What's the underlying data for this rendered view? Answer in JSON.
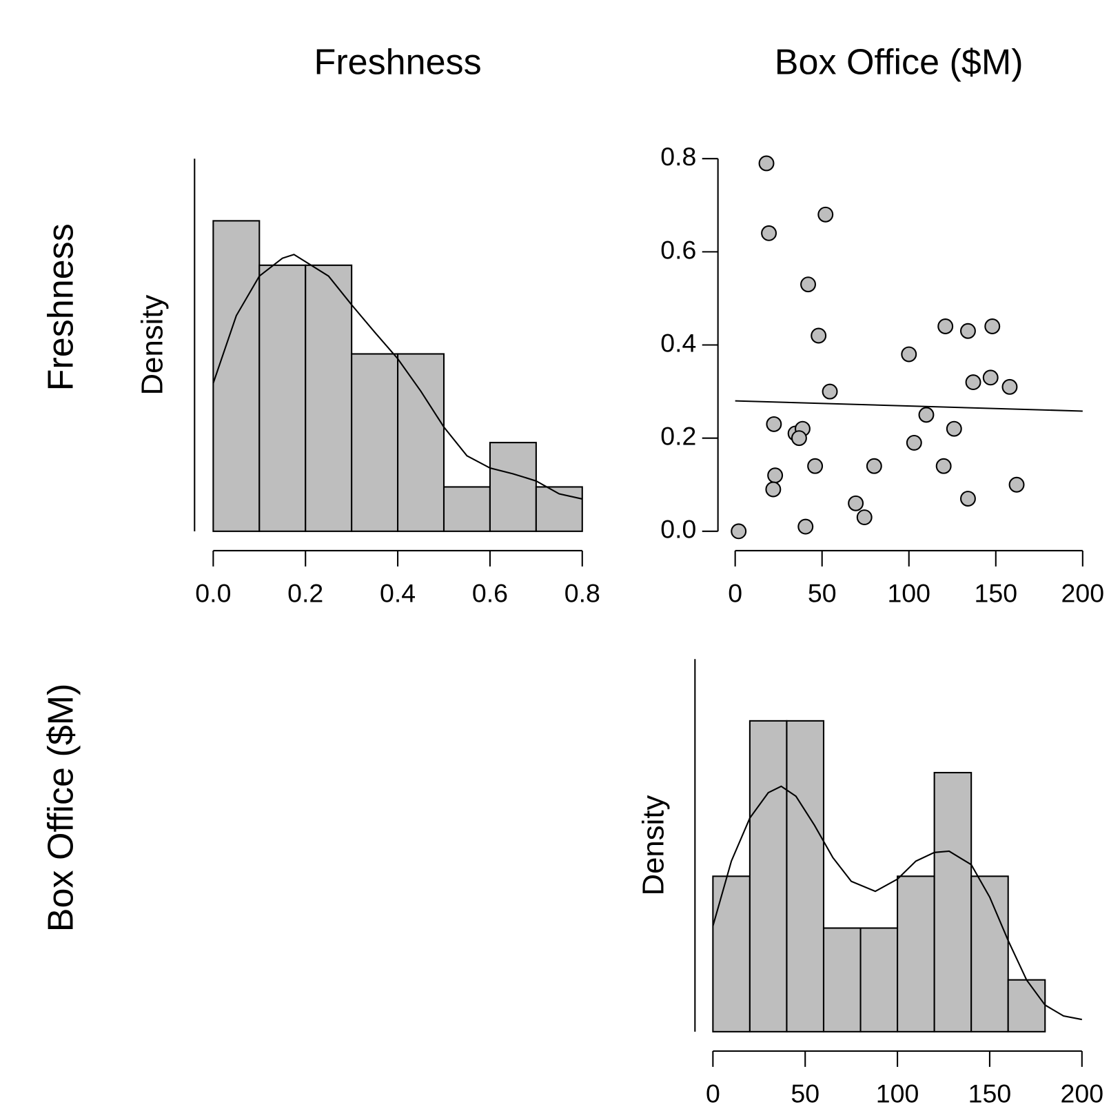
{
  "column_labels": [
    "Freshness",
    "Box Office ($M)"
  ],
  "row_labels": [
    "Freshness",
    "Box Office ($M)"
  ],
  "chart_data": [
    {
      "type": "histogram",
      "ylabel": "Density",
      "color": "#bebebe",
      "bins": [
        0,
        0.1,
        0.2,
        0.3,
        0.4,
        0.5,
        0.6,
        0.7,
        0.8
      ],
      "values": [
        2.258,
        1.935,
        1.935,
        1.29,
        1.29,
        0.3226,
        0.6452,
        0.3226
      ],
      "xlim": [
        0,
        0.8
      ],
      "xticks": [
        {
          "value": 0,
          "label": "0.0"
        },
        0.2,
        0.4,
        0.6,
        0.8
      ],
      "ylim": [
        0,
        2.71
      ],
      "density_curve": {
        "x": [
          0,
          0.05,
          0.1,
          0.15,
          0.175,
          0.25,
          0.3,
          0.35,
          0.4,
          0.45,
          0.5,
          0.55,
          0.6,
          0.65,
          0.7,
          0.75,
          0.8
        ],
        "y": [
          1.077,
          1.568,
          1.856,
          1.986,
          2.013,
          1.856,
          1.647,
          1.448,
          1.255,
          1.019,
          0.758,
          0.549,
          0.46,
          0.418,
          0.366,
          0.272,
          0.235
        ]
      }
    },
    {
      "type": "scatter",
      "color": "#bebebe",
      "x": [
        18,
        19.4,
        52,
        42,
        48,
        54.5,
        22.3,
        34.7,
        38.8,
        36.8,
        23,
        21.9,
        46,
        40.5,
        2,
        69.4,
        74.4,
        80,
        100,
        110,
        103,
        121,
        134,
        148,
        137,
        147,
        158,
        126,
        120,
        134,
        162
      ],
      "y": [
        0.79,
        0.64,
        0.68,
        0.53,
        0.42,
        0.3,
        0.23,
        0.21,
        0.22,
        0.2,
        0.12,
        0.09,
        0.14,
        0.01,
        0,
        0.06,
        0.03,
        0.14,
        0.38,
        0.25,
        0.19,
        0.44,
        0.43,
        0.44,
        0.32,
        0.33,
        0.31,
        0.22,
        0.14,
        0.07,
        0.1
      ],
      "xlim": [
        0,
        200
      ],
      "xticks": [
        0,
        50,
        100,
        150,
        200
      ],
      "ylim": [
        0,
        0.8
      ],
      "yticks": [
        {
          "value": 0,
          "label": "0.0"
        },
        0.2,
        0.4,
        0.6,
        0.8
      ],
      "trend_line": {
        "x": [
          0,
          200
        ],
        "y": [
          0.28,
          0.258
        ]
      }
    },
    {
      "type": "histogram",
      "ylabel": "Density",
      "color": "#bebebe",
      "bins": [
        0,
        20,
        40,
        60,
        80,
        100,
        120,
        140,
        160,
        180
      ],
      "values": [
        0.004839,
        0.009677,
        0.009677,
        0.003226,
        0.003226,
        0.004839,
        0.008065,
        0.004839,
        0.001613
      ],
      "xlim": [
        0,
        200
      ],
      "xticks": [
        0,
        50,
        100,
        150,
        200
      ],
      "ylim": [
        0,
        0.0116
      ],
      "density_curve": {
        "x": [
          0,
          10,
          20,
          30,
          37,
          45,
          55,
          65,
          75,
          88,
          100,
          110,
          120,
          128,
          140,
          150,
          160,
          170,
          180,
          190,
          200
        ],
        "y": [
          0.00329,
          0.00531,
          0.00665,
          0.00744,
          0.00764,
          0.00733,
          0.00643,
          0.00542,
          0.00468,
          0.00437,
          0.00475,
          0.00531,
          0.00558,
          0.00562,
          0.0052,
          0.00419,
          0.00284,
          0.00161,
          0.00083,
          0.00049,
          0.00038
        ]
      }
    }
  ]
}
